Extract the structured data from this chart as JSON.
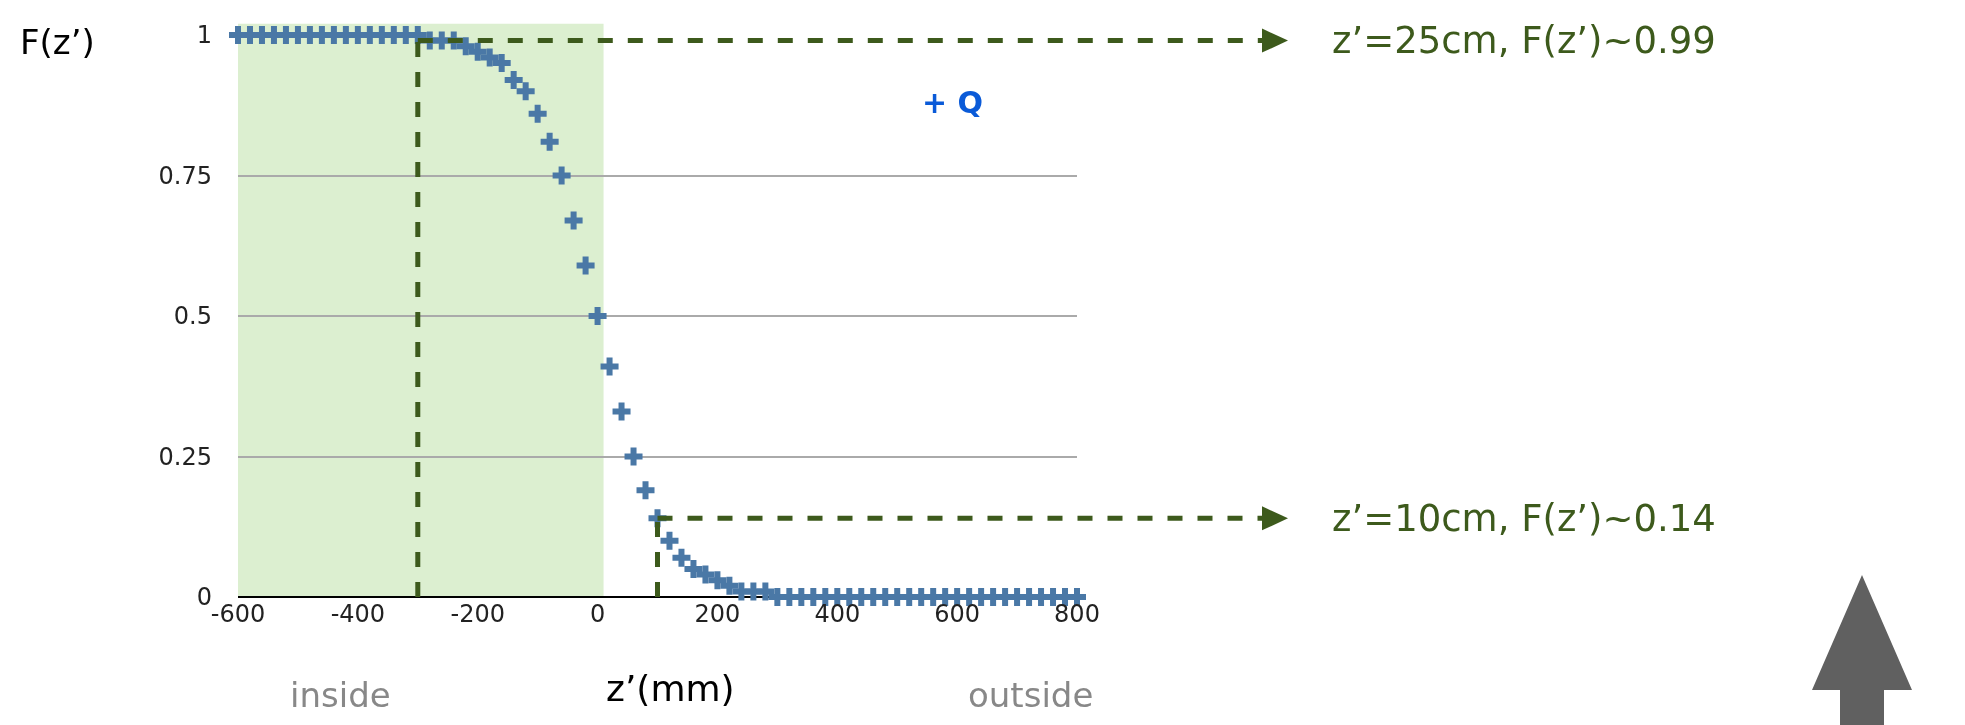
{
  "chart_data": {
    "type": "scatter",
    "xlabel": "z’(mm)",
    "ylabel": "F(z’)",
    "x": [
      -600,
      -580,
      -560,
      -540,
      -520,
      -500,
      -480,
      -460,
      -440,
      -420,
      -400,
      -380,
      -360,
      -340,
      -320,
      -300,
      -280,
      -260,
      -240,
      -220,
      -200,
      -180,
      -160,
      -140,
      -120,
      -100,
      -80,
      -60,
      -40,
      -20,
      0,
      20,
      40,
      60,
      80,
      100,
      120,
      140,
      160,
      180,
      200,
      220,
      240,
      260,
      280,
      300,
      320,
      340,
      360,
      380,
      400,
      420,
      440,
      460,
      480,
      500,
      520,
      540,
      560,
      580,
      600,
      620,
      640,
      660,
      680,
      700,
      720,
      740,
      760,
      780,
      800
    ],
    "series": [
      {
        "color": "#4a78a6",
        "values": [
          1,
          1,
          1,
          1,
          1,
          1,
          1,
          1,
          1,
          1,
          1,
          1,
          1,
          1,
          1,
          1,
          0.99,
          0.99,
          0.99,
          0.98,
          0.97,
          0.96,
          0.95,
          0.92,
          0.9,
          0.86,
          0.81,
          0.75,
          0.67,
          0.59,
          0.5,
          0.41,
          0.33,
          0.25,
          0.19,
          0.14,
          0.1,
          0.07,
          0.05,
          0.04,
          0.03,
          0.02,
          0.01,
          0.01,
          0.01,
          0,
          0,
          0,
          0,
          0,
          0,
          0,
          0,
          0,
          0,
          0,
          0,
          0,
          0,
          0,
          0,
          0,
          0,
          0,
          0,
          0,
          0,
          0,
          0,
          0,
          0
        ]
      }
    ],
    "xlim": [
      -600,
      800
    ],
    "xticks": [
      -600,
      -400,
      -200,
      0,
      200,
      400,
      600,
      800
    ],
    "ylim": [
      0,
      1
    ],
    "yticks": [
      0,
      0.25,
      0.5,
      0.75,
      1
    ],
    "grid": "y",
    "legend": false,
    "marker": "cross",
    "bands": [
      {
        "axis": "x",
        "from": -600,
        "to": 10,
        "color": "#dcefd0"
      }
    ],
    "ref_lines": [
      {
        "axis": "x",
        "value": -300,
        "color": "#3d5a1c",
        "line_style": "dashed"
      },
      {
        "axis": "y",
        "value": 0.99,
        "label": "z’=25cm, F(z’)~0.99",
        "color": "#3d5a1c",
        "line_style": "dashed"
      },
      {
        "axis": "x",
        "value": 100,
        "color": "#3d5a1c",
        "line_style": "dashed"
      },
      {
        "axis": "y",
        "value": 0.14,
        "label": "z’=10cm, F(z’)~0.14",
        "color": "#3d5a1c",
        "line_style": "dashed"
      }
    ],
    "annotations": [
      "+ Q",
      "inside",
      "outside"
    ]
  }
}
